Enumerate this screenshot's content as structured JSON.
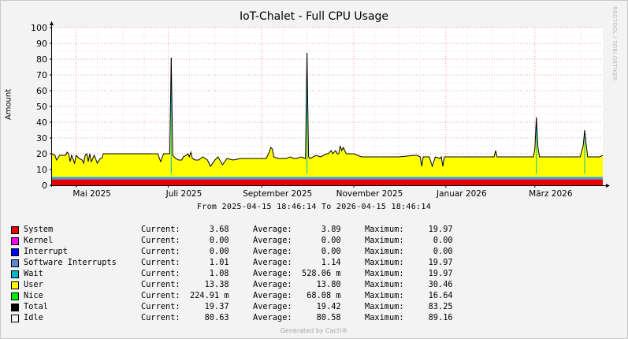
{
  "title": "IoT-Chalet - Full CPU Usage",
  "side_text": "RRDTOOL / TOBI OETIKER",
  "footer": "Generated by Cacti®",
  "colors": {
    "system": "#e80000",
    "kernel": "#ff00ff",
    "interrupt": "#0000ff",
    "software_interrupts": "#5b87d9",
    "wait": "#00b8c8",
    "user": "#ffff00",
    "nice": "#00ee00",
    "total": "#000000",
    "idle": "#f2f2f2",
    "major_grid": "#f0a0a0",
    "minor_grid": "#e4e4e4"
  },
  "chart_data": {
    "type": "area",
    "title": "IoT-Chalet - Full CPU Usage",
    "ylabel": "Amount",
    "xlabel": "From 2025-04-15 18:46:14 To 2026-04-15 18:46:14",
    "ylim": [
      0,
      100
    ],
    "yticks": [
      0,
      10,
      20,
      30,
      40,
      50,
      60,
      70,
      80,
      90,
      100
    ],
    "xlim": [
      "2025-04-15",
      "2026-04-15"
    ],
    "xticks": [
      {
        "date": "2025-05-01",
        "label": "Mai 2025"
      },
      {
        "date": "2025-07-01",
        "label": "Juli 2025"
      },
      {
        "date": "2025-09-01",
        "label": "September 2025"
      },
      {
        "date": "2025-11-01",
        "label": "November 2025"
      },
      {
        "date": "2026-01-01",
        "label": "Januar 2026"
      },
      {
        "date": "2026-03-01",
        "label": "März 2026"
      }
    ],
    "grid": true,
    "series": [
      {
        "name": "System",
        "color": "#e80000",
        "values": [
          [
            0,
            3.7
          ],
          [
            365,
            3.7
          ]
        ]
      },
      {
        "name": "Software Interrupts",
        "color": "#5b87d9",
        "values": [
          [
            0,
            1.1
          ],
          [
            365,
            1.1
          ]
        ]
      },
      {
        "name": "Wait",
        "color": "#00b8c8",
        "values": [
          [
            0,
            0.6
          ],
          [
            365,
            0.6
          ]
        ]
      },
      {
        "name": "User",
        "color": "#ffff00",
        "values": [
          [
            0,
            14.0
          ],
          [
            365,
            14.0
          ]
        ]
      },
      {
        "name": "Total",
        "color": "#000000",
        "values": [
          [
            0,
            20
          ],
          [
            2,
            19
          ],
          [
            3,
            16
          ],
          [
            5,
            19
          ],
          [
            7,
            19
          ],
          [
            9,
            19
          ],
          [
            10,
            21
          ],
          [
            11,
            20
          ],
          [
            12,
            15
          ],
          [
            13,
            19
          ],
          [
            15,
            14
          ],
          [
            16,
            19
          ],
          [
            18,
            17
          ],
          [
            20,
            16
          ],
          [
            21,
            14
          ],
          [
            22,
            19
          ],
          [
            23,
            20
          ],
          [
            24,
            15
          ],
          [
            25,
            20
          ],
          [
            26,
            15
          ],
          [
            28,
            19
          ],
          [
            30,
            14
          ],
          [
            32,
            17
          ],
          [
            33,
            17
          ],
          [
            34,
            20
          ],
          [
            36,
            20
          ],
          [
            44,
            20
          ],
          [
            56,
            20
          ],
          [
            70,
            20
          ],
          [
            72,
            15
          ],
          [
            74,
            20
          ],
          [
            75,
            20
          ],
          [
            78,
            20
          ],
          [
            79,
            81
          ],
          [
            80,
            19
          ],
          [
            82,
            17
          ],
          [
            84,
            16
          ],
          [
            86,
            16
          ],
          [
            87,
            18
          ],
          [
            89,
            19
          ],
          [
            90,
            20
          ],
          [
            91,
            18
          ],
          [
            92,
            21
          ],
          [
            93,
            17
          ],
          [
            95,
            16
          ],
          [
            97,
            16
          ],
          [
            100,
            18
          ],
          [
            103,
            16
          ],
          [
            105,
            12
          ],
          [
            108,
            16
          ],
          [
            110,
            18
          ],
          [
            113,
            13
          ],
          [
            116,
            17
          ],
          [
            120,
            16
          ],
          [
            125,
            17
          ],
          [
            130,
            17
          ],
          [
            135,
            17
          ],
          [
            140,
            17
          ],
          [
            142,
            17
          ],
          [
            144,
            21
          ],
          [
            145,
            24
          ],
          [
            146,
            23
          ],
          [
            147,
            18
          ],
          [
            150,
            17
          ],
          [
            155,
            17
          ],
          [
            158,
            18
          ],
          [
            160,
            17
          ],
          [
            162,
            17
          ],
          [
            165,
            18
          ],
          [
            168,
            17
          ],
          [
            169,
            84
          ],
          [
            170,
            18
          ],
          [
            171,
            17
          ],
          [
            175,
            19
          ],
          [
            178,
            18
          ],
          [
            182,
            20
          ],
          [
            183,
            20
          ],
          [
            184,
            21
          ],
          [
            185,
            22
          ],
          [
            186,
            20
          ],
          [
            188,
            22
          ],
          [
            189,
            20
          ],
          [
            190,
            20
          ],
          [
            191,
            25
          ],
          [
            192,
            22
          ],
          [
            193,
            24
          ],
          [
            194,
            22
          ],
          [
            195,
            20
          ],
          [
            200,
            20
          ],
          [
            205,
            18
          ],
          [
            210,
            18
          ],
          [
            220,
            18
          ],
          [
            230,
            18
          ],
          [
            240,
            19
          ],
          [
            242,
            19
          ],
          [
            244,
            18
          ],
          [
            245,
            12
          ],
          [
            246,
            18
          ],
          [
            250,
            18
          ],
          [
            252,
            12
          ],
          [
            254,
            18
          ],
          [
            257,
            17
          ],
          [
            258,
            18
          ],
          [
            259,
            12
          ],
          [
            260,
            18
          ],
          [
            270,
            18
          ],
          [
            280,
            18
          ],
          [
            285,
            18
          ],
          [
            290,
            18
          ],
          [
            293,
            18
          ],
          [
            294,
            22
          ],
          [
            295,
            18
          ],
          [
            300,
            18
          ],
          [
            310,
            18
          ],
          [
            319,
            18
          ],
          [
            320,
            23
          ],
          [
            321,
            43
          ],
          [
            322,
            24
          ],
          [
            323,
            18
          ],
          [
            330,
            18
          ],
          [
            336,
            18
          ],
          [
            345,
            18
          ],
          [
            350,
            18
          ],
          [
            352,
            25
          ],
          [
            353,
            35
          ],
          [
            354,
            26
          ],
          [
            355,
            18
          ],
          [
            360,
            18
          ],
          [
            363,
            18
          ],
          [
            365,
            19
          ]
        ]
      }
    ]
  },
  "legend": {
    "labels": {
      "current": "Current:",
      "average": "Average:",
      "maximum": "Maximum:"
    },
    "items": [
      {
        "name": "System",
        "color": "#e80000",
        "current": "3.68",
        "average": "3.89",
        "maximum": "19.97"
      },
      {
        "name": "Kernel",
        "color": "#ff00ff",
        "current": "0.00",
        "average": "0.00",
        "maximum": "0.00"
      },
      {
        "name": "Interrupt",
        "color": "#0000ff",
        "current": "0.00",
        "average": "0.00",
        "maximum": "0.00"
      },
      {
        "name": "Software Interrupts",
        "color": "#5b87d9",
        "current": "1.01",
        "average": "1.14",
        "maximum": "19.97"
      },
      {
        "name": "Wait",
        "color": "#00b8c8",
        "current": "1.08",
        "average": "528.06 m",
        "maximum": "19.97"
      },
      {
        "name": "User",
        "color": "#ffff00",
        "current": "13.38",
        "average": "13.80",
        "maximum": "30.46"
      },
      {
        "name": "Nice",
        "color": "#00ee00",
        "current": "224.91 m",
        "average": "68.08 m",
        "maximum": "16.64"
      },
      {
        "name": "Total",
        "color": "#000000",
        "current": "19.37",
        "average": "19.42",
        "maximum": "83.25"
      },
      {
        "name": "Idle",
        "color": "#f2f2f2",
        "current": "80.63",
        "average": "80.58",
        "maximum": "89.16"
      }
    ]
  }
}
